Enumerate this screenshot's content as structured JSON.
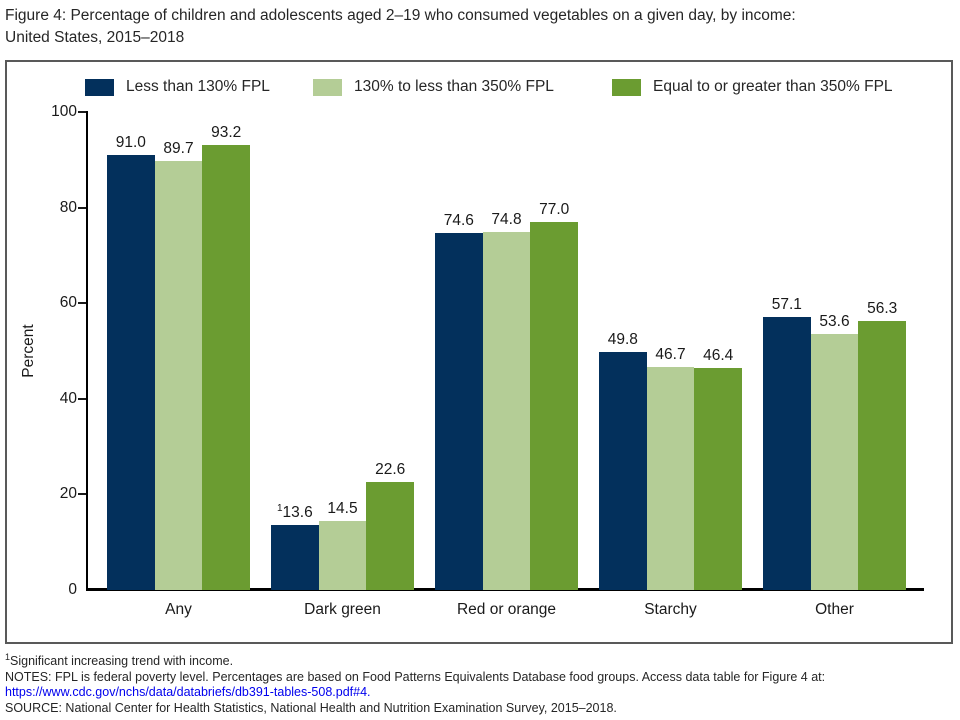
{
  "title": {
    "line1": "Figure 4: Percentage of children and adolescents aged 2–19 who consumed vegetables on a given day, by income:",
    "line2": "United States, 2015–2018"
  },
  "chart_data": {
    "type": "bar",
    "title": "Figure 4: Percentage of children and adolescents aged 2–19 who consumed vegetables on a given day, by income: United States, 2015–2018",
    "categories": [
      "Any",
      "Dark green",
      "Red or orange",
      "Starchy",
      "Other"
    ],
    "series": [
      {
        "name": "Less than 130% FPL",
        "color": "#03305c",
        "values": [
          91.0,
          13.6,
          74.6,
          49.8,
          57.1
        ]
      },
      {
        "name": "130% to less than 350% FPL",
        "color": "#b4cd96",
        "values": [
          89.7,
          14.5,
          74.8,
          46.7,
          53.6
        ]
      },
      {
        "name": "Equal to or greater than 350% FPL",
        "color": "#6b9c31",
        "values": [
          93.2,
          22.6,
          77.0,
          46.4,
          56.3
        ]
      }
    ],
    "value_label_markers": {
      "1_0": "1"
    },
    "xlabel": "",
    "ylabel": "Percent",
    "ylim": [
      0,
      100
    ],
    "yticks": [
      0,
      20,
      40,
      60,
      80,
      100
    ],
    "grid": false,
    "legend_position": "top-inside"
  },
  "footnotes": {
    "note1_marker": "1",
    "note1_text": "Significant increasing trend with income.",
    "notes": "NOTES: FPL is federal poverty level. Percentages are based on Food Patterns Equivalents Database food groups. Access data table for Figure 4 at:",
    "link": "https://www.cdc.gov/nchs/data/databriefs/db391-tables-508.pdf#4.",
    "source": "SOURCE: National Center for Health Statistics, National Health and Nutrition Examination Survey, 2015–2018."
  },
  "colors": {
    "text": "#262626",
    "axis": "#000000",
    "box_border": "#595959",
    "link": "#0000ee"
  }
}
